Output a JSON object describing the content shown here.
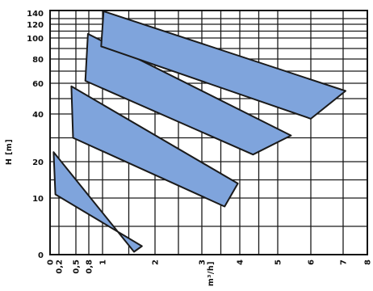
{
  "chart_data": {
    "type": "area",
    "xlabel": "Q  [m³/h]",
    "ylabel": "H  [m]",
    "x_ticks": [
      "0",
      "0,2",
      "0,5",
      "0,8",
      "1",
      "2",
      "3",
      "4",
      "5",
      "6",
      "7",
      "8"
    ],
    "y_ticks": [
      "140",
      "120",
      "100",
      "80",
      "60",
      "40",
      "20",
      "10",
      "0"
    ],
    "grid": true,
    "series": [
      {
        "points": [
          [
            0.08,
            24
          ],
          [
            0.12,
            11
          ],
          [
            1.75,
            1.5
          ],
          [
            1.6,
            0.5
          ]
        ]
      },
      {
        "points": [
          [
            0.42,
            58
          ],
          [
            0.45,
            30
          ],
          [
            3.6,
            8.5
          ],
          [
            3.95,
            14
          ]
        ]
      },
      {
        "points": [
          [
            0.78,
            106
          ],
          [
            0.72,
            62
          ],
          [
            4.35,
            23
          ],
          [
            5.4,
            31
          ]
        ]
      },
      {
        "points": [
          [
            1.02,
            143
          ],
          [
            0.98,
            92
          ],
          [
            6.0,
            38
          ],
          [
            7.1,
            55
          ]
        ]
      }
    ]
  }
}
